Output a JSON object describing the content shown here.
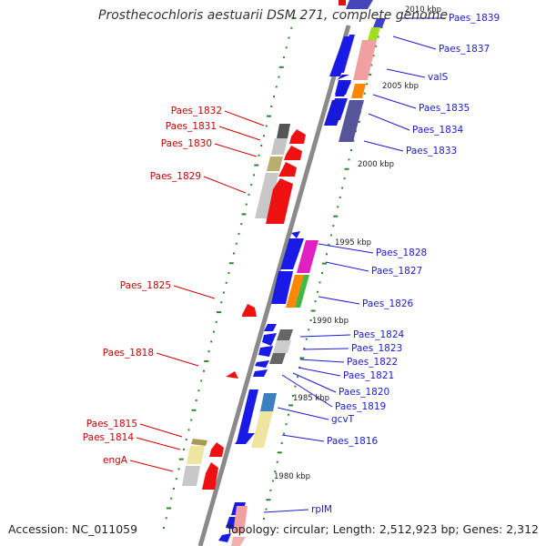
{
  "title": "Prosthecochloris aestuarii DSM 271, complete genome",
  "accession": "Accession: NC_011059",
  "topology": "Topology: circular; Length: 2,512,923 bp; Genes: 2,312",
  "colors": {
    "right_label": "#1a1ad6",
    "left_label": "#cc0000",
    "backbone": "#888888",
    "tick": "#2a8a2a"
  },
  "scale_labels": [
    "2010 kbp",
    "2005 kbp",
    "2000 kbp",
    "1995 kbp",
    "1990 kbp",
    "1985 kbp",
    "1980 kbp"
  ],
  "right_genes": [
    "Paes_1839",
    "Paes_1837",
    "valS",
    "Paes_1835",
    "Paes_1834",
    "Paes_1833",
    "Paes_1828",
    "Paes_1827",
    "Paes_1826",
    "Paes_1824",
    "Paes_1823",
    "Paes_1822",
    "Paes_1821",
    "Paes_1820",
    "Paes_1819",
    "gcvT",
    "Paes_1816",
    "rplM"
  ],
  "left_genes": [
    "Paes_1832",
    "Paes_1831",
    "Paes_1830",
    "Paes_1829",
    "Paes_1825",
    "Paes_1818",
    "Paes_1815",
    "Paes_1814",
    "engA"
  ]
}
